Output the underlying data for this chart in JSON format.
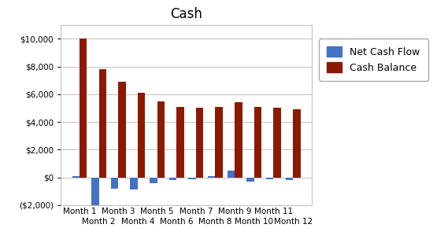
{
  "title": "Cash",
  "categories": [
    "Month 1",
    "Month 2",
    "Month 3",
    "Month 4",
    "Month 5",
    "Month 6",
    "Month 7",
    "Month 8",
    "Month 9",
    "Month 10",
    "Month 11",
    "Month 12"
  ],
  "net_cash_flow": [
    100,
    -2000,
    -800,
    -900,
    -400,
    -200,
    -150,
    100,
    500,
    -300,
    -150,
    -200
  ],
  "cash_balance": [
    10000,
    7800,
    6900,
    6100,
    5500,
    5100,
    5000,
    5100,
    5400,
    5100,
    5000,
    4900
  ],
  "bar_color_ncf": "#4472C4",
  "bar_color_cb": "#8B1A00",
  "legend_labels": [
    "Net Cash Flow",
    "Cash Balance"
  ],
  "ylim": [
    -2000,
    11000
  ],
  "yticks": [
    -2000,
    0,
    2000,
    4000,
    6000,
    8000,
    10000
  ],
  "ytick_labels": [
    "($2,000)",
    "$0",
    "$2,000",
    "$4,000",
    "$6,000",
    "$8,000",
    "$10,000"
  ],
  "background_color": "#FFFFFF",
  "grid_color": "#C0C0C0",
  "title_fontsize": 12,
  "legend_fontsize": 9,
  "tick_fontsize": 7.5
}
